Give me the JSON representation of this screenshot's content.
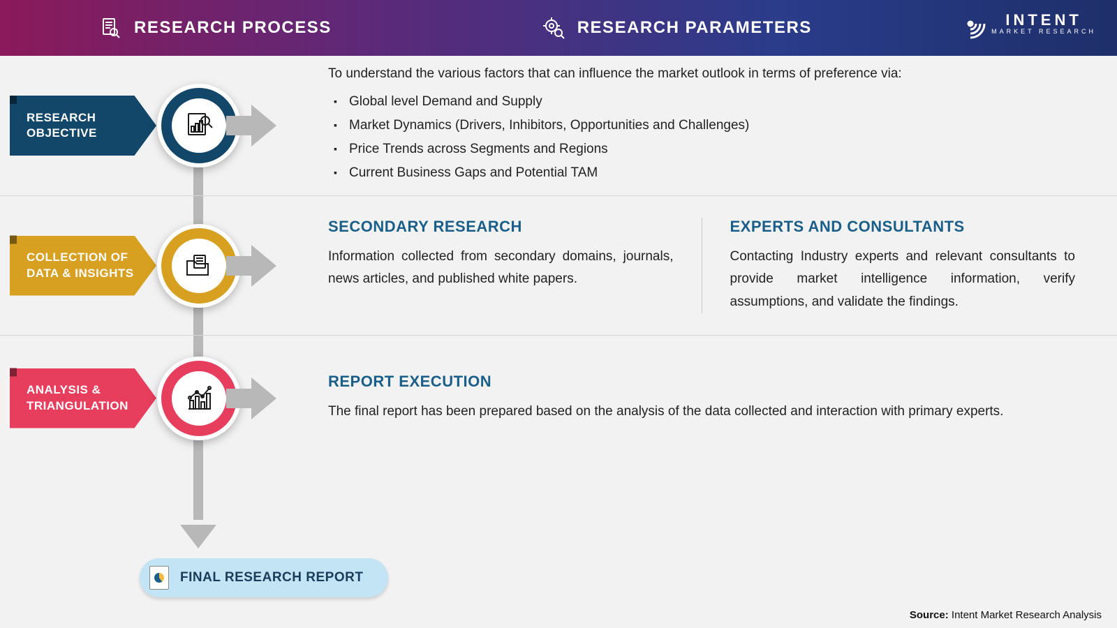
{
  "header": {
    "title_left": "RESEARCH PROCESS",
    "title_right": "RESEARCH PARAMETERS",
    "brand_top": "INTENT",
    "brand_sub": "MARKET RESEARCH",
    "gradient_colors": [
      "#8a1a5a",
      "#5a2a7a",
      "#2a3c8a",
      "#1e2f6a"
    ]
  },
  "colors": {
    "page_bg": "#f2f2f2",
    "connector_gray": "#b8b8b8",
    "divider_gray": "#d5d5d5",
    "heading_teal": "#1a5f8a",
    "text_color": "#222222",
    "pill_bg": "#c2e4f5",
    "pill_text": "#1a3c5a"
  },
  "steps": [
    {
      "label_line1": "RESEARCH",
      "label_line2": "OBJECTIVE",
      "color": "#12476a",
      "color_dark": "#0a2c42",
      "icon": "doc-chart-search",
      "content_type": "bullets",
      "intro": "To understand the various factors that can influence the market outlook in terms of preference via:",
      "bullets": [
        "Global level Demand and Supply",
        "Market Dynamics (Drivers, Inhibitors, Opportunities and Challenges)",
        "Price Trends across Segments and Regions",
        "Current Business Gaps and Potential TAM"
      ]
    },
    {
      "label_line1": "COLLECTION OF",
      "label_line2": "DATA & INSIGHTS",
      "color": "#d8a020",
      "color_dark": "#8a6512",
      "icon": "folder-file",
      "content_type": "twocol",
      "col1_head": "SECONDARY RESEARCH",
      "col1_text": "Information collected from secondary domains, journals, news articles, and published white papers.",
      "col2_head": "EXPERTS AND CONSULTANTS",
      "col2_text": "Contacting Industry experts and relevant consultants to provide market intelligence information, verify assumptions, and validate the findings."
    },
    {
      "label_line1": "ANALYSIS &",
      "label_line2": "TRIANGULATION",
      "color": "#e83e5e",
      "color_dark": "#98263c",
      "icon": "bar-line-chart",
      "content_type": "single",
      "single_head": "REPORT EXECUTION",
      "single_text": "The final report has been prepared based on the analysis of the data collected and interaction with primary experts."
    }
  ],
  "final": {
    "label": "FINAL RESEARCH REPORT",
    "icon": "report-pie"
  },
  "source_prefix": "Source:",
  "source_text": " Intent Market Research Analysis"
}
